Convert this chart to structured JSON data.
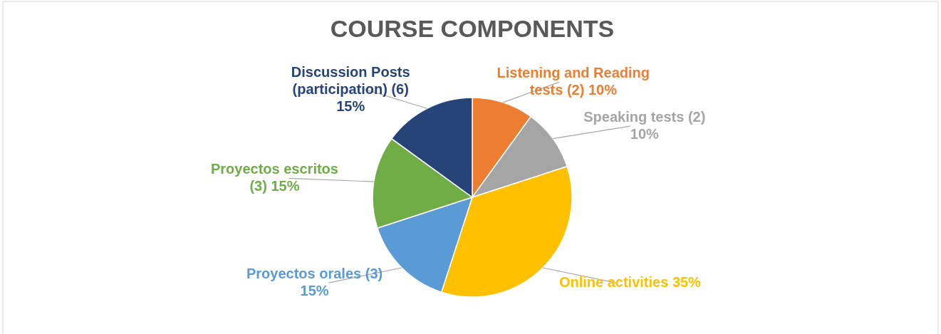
{
  "chart_data": {
    "type": "pie",
    "title": "COURSE COMPONENTS",
    "categories": [
      "Listening and Reading tests (2)",
      "Speaking tests (2)",
      "Online activities",
      "Proyectos orales (3)",
      "Proyectos escritos (3)",
      "Discussion Posts (participation) (6)"
    ],
    "values": [
      10,
      10,
      35,
      15,
      15,
      15
    ],
    "colors": [
      "#ed7d31",
      "#a5a5a5",
      "#ffc000",
      "#5b9bd5",
      "#70ad47",
      "#264478"
    ],
    "value_labels": [
      "10%",
      "10%",
      "35%",
      "15%",
      "15%",
      "15%"
    ],
    "legend": false
  }
}
